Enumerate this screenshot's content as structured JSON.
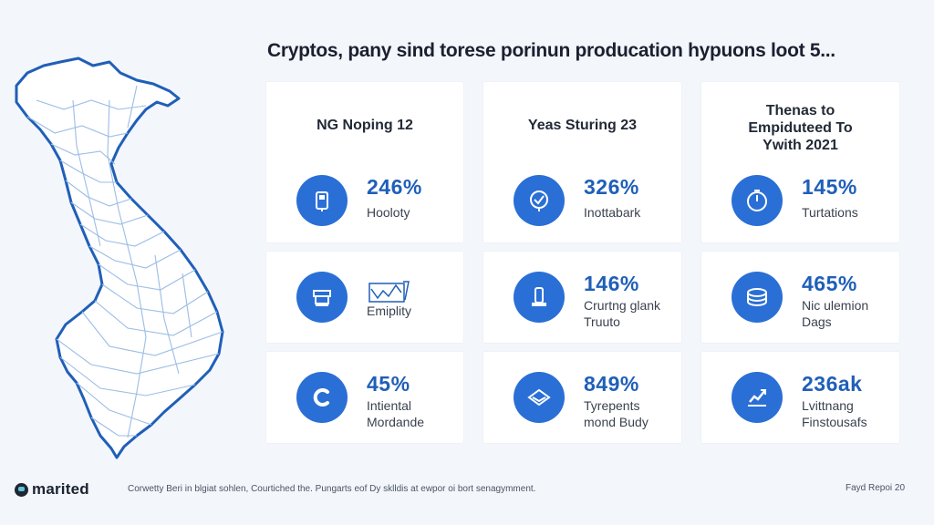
{
  "header": {
    "title": "Cryptos, pany sind torese porinun producation hypuons loot 5..."
  },
  "map": {
    "region_icon": "country-outline-map",
    "stroke_color": "#1f5fb8",
    "border_color": "#9bbde6"
  },
  "columns": [
    {
      "title": "NG Noping 12",
      "metrics": [
        {
          "icon": "wallet-icon",
          "value": "246%",
          "label": "Hooloty"
        },
        {
          "icon": "atm-icon",
          "value": "",
          "label": "Emiplity"
        },
        {
          "icon": "coin-c-icon",
          "value": "45%",
          "label": "Intiental\nMordande"
        }
      ]
    },
    {
      "title": "Yeas Sturing 23",
      "metrics": [
        {
          "icon": "shield-check-icon",
          "value": "326%",
          "label": "Inottabark"
        },
        {
          "icon": "phone-icon",
          "value": "146%",
          "label": "Crurtng glank\nTruuto"
        },
        {
          "icon": "envelope-icon",
          "value": "849%",
          "label": "Tyrepents\nmond Budy"
        }
      ]
    },
    {
      "title": "Thenas to\nEmpiduteed To\nYwith 2021",
      "metrics": [
        {
          "icon": "clock-icon",
          "value": "145%",
          "label": "Turtations"
        },
        {
          "icon": "coin-stack-icon",
          "value": "465%",
          "label": "Nic ulemion\nDags"
        },
        {
          "icon": "chart-up-icon",
          "value": "236ak",
          "label": "Lvittnang\nFinstousafs"
        }
      ]
    }
  ],
  "accent_color": "#2a6fd6",
  "footer": {
    "brand": "marited",
    "text": "Corwetty Beri in blgiat sohlen, Courtiched the. Pungarts eof Dy sklldis at ewpor oi bort senagymment.",
    "right": "Fayd Repoi 20"
  }
}
